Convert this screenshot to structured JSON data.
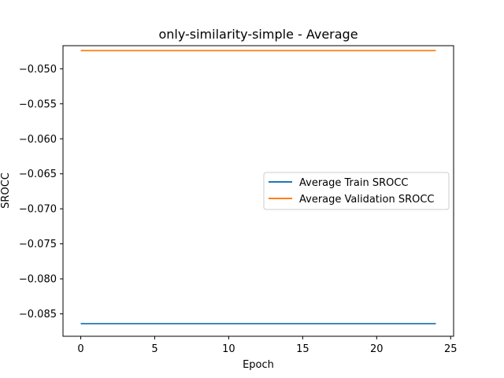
{
  "chart_data": {
    "type": "line",
    "title": "only-similarity-simple - Average",
    "xlabel": "Epoch",
    "ylabel": "SROCC",
    "xlim": [
      -1.2,
      25.2
    ],
    "ylim": [
      -0.0882,
      -0.0467
    ],
    "xticks": [
      0,
      5,
      10,
      15,
      20,
      25
    ],
    "xtick_labels": [
      "0",
      "5",
      "10",
      "15",
      "20",
      "25"
    ],
    "yticks": [
      -0.05,
      -0.055,
      -0.06,
      -0.065,
      -0.07,
      -0.075,
      -0.08,
      -0.085
    ],
    "ytick_labels": [
      "−0.050",
      "−0.055",
      "−0.060",
      "−0.065",
      "−0.070",
      "−0.075",
      "−0.080",
      "−0.085"
    ],
    "grid": false,
    "legend_position": "center-right",
    "series": [
      {
        "name": "Average Train SROCC",
        "color": "#1f77b4",
        "x": [
          0,
          24
        ],
        "y": [
          -0.0864,
          -0.0864
        ]
      },
      {
        "name": "Average Validation SROCC",
        "color": "#ff7f0e",
        "x": [
          0,
          24
        ],
        "y": [
          -0.0474,
          -0.0474
        ]
      }
    ]
  }
}
